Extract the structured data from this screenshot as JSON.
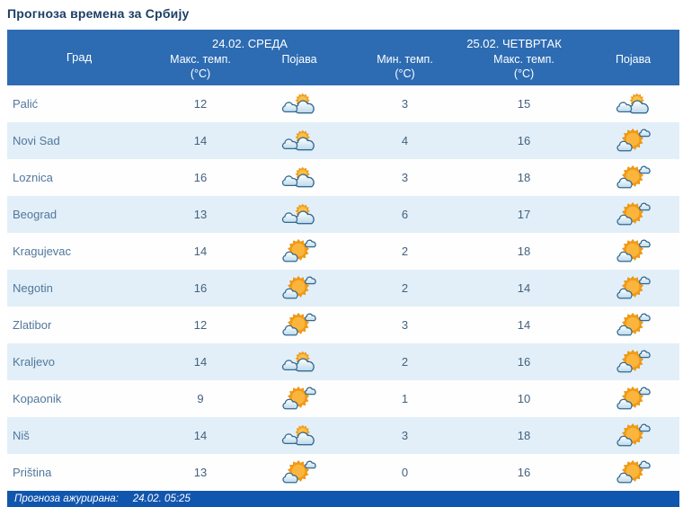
{
  "page": {
    "title": "Прогноза времена за Србију"
  },
  "colors": {
    "header_bg": "#2d6cb3",
    "footer_bg": "#1156ae",
    "row_alt_bg": "#e2eff8",
    "title_text": "#1d3f66",
    "city_text": "#51779c",
    "number_text": "#44617e",
    "sun_orange": "#f5a01c",
    "cloud_outline": "#336a90"
  },
  "table": {
    "columns": {
      "city": "Град",
      "day1": {
        "date_label": "24.02. СРЕДА",
        "max_temp": {
          "label": "Макс. темп.",
          "unit": "(°C)"
        },
        "phenomenon": "Појава"
      },
      "day2": {
        "date_label": "25.02. ЧЕТВРТАК",
        "min_temp": {
          "label": "Мин. темп.",
          "unit": "(°C)"
        },
        "max_temp": {
          "label": "Макс. темп.",
          "unit": "(°C)"
        },
        "phenomenon": "Појава"
      }
    },
    "icons": {
      "mostly-cloudy": "sun-behind-clouds-icon",
      "partly-sunny": "sun-with-small-clouds-icon"
    },
    "rows": [
      {
        "city": "Palić",
        "day1_max": 12,
        "day1_icon": "mostly-cloudy",
        "day2_min": 3,
        "day2_max": 15,
        "day2_icon": "mostly-cloudy"
      },
      {
        "city": "Novi Sad",
        "day1_max": 14,
        "day1_icon": "mostly-cloudy",
        "day2_min": 4,
        "day2_max": 16,
        "day2_icon": "partly-sunny"
      },
      {
        "city": "Loznica",
        "day1_max": 16,
        "day1_icon": "mostly-cloudy",
        "day2_min": 3,
        "day2_max": 18,
        "day2_icon": "partly-sunny"
      },
      {
        "city": "Beograd",
        "day1_max": 13,
        "day1_icon": "mostly-cloudy",
        "day2_min": 6,
        "day2_max": 17,
        "day2_icon": "partly-sunny"
      },
      {
        "city": "Kragujevac",
        "day1_max": 14,
        "day1_icon": "partly-sunny",
        "day2_min": 2,
        "day2_max": 18,
        "day2_icon": "partly-sunny"
      },
      {
        "city": "Negotin",
        "day1_max": 16,
        "day1_icon": "partly-sunny",
        "day2_min": 2,
        "day2_max": 14,
        "day2_icon": "partly-sunny"
      },
      {
        "city": "Zlatibor",
        "day1_max": 12,
        "day1_icon": "partly-sunny",
        "day2_min": 3,
        "day2_max": 14,
        "day2_icon": "partly-sunny"
      },
      {
        "city": "Kraljevo",
        "day1_max": 14,
        "day1_icon": "mostly-cloudy",
        "day2_min": 2,
        "day2_max": 16,
        "day2_icon": "partly-sunny"
      },
      {
        "city": "Kopaonik",
        "day1_max": 9,
        "day1_icon": "partly-sunny",
        "day2_min": 1,
        "day2_max": 10,
        "day2_icon": "partly-sunny"
      },
      {
        "city": "Niš",
        "day1_max": 14,
        "day1_icon": "mostly-cloudy",
        "day2_min": 3,
        "day2_max": 18,
        "day2_icon": "partly-sunny"
      },
      {
        "city": "Priština",
        "day1_max": 13,
        "day1_icon": "partly-sunny",
        "day2_min": 0,
        "day2_max": 16,
        "day2_icon": "partly-sunny"
      }
    ]
  },
  "footer": {
    "label": "Прогноза ажурирана:",
    "value": "24.02. 05:25"
  }
}
